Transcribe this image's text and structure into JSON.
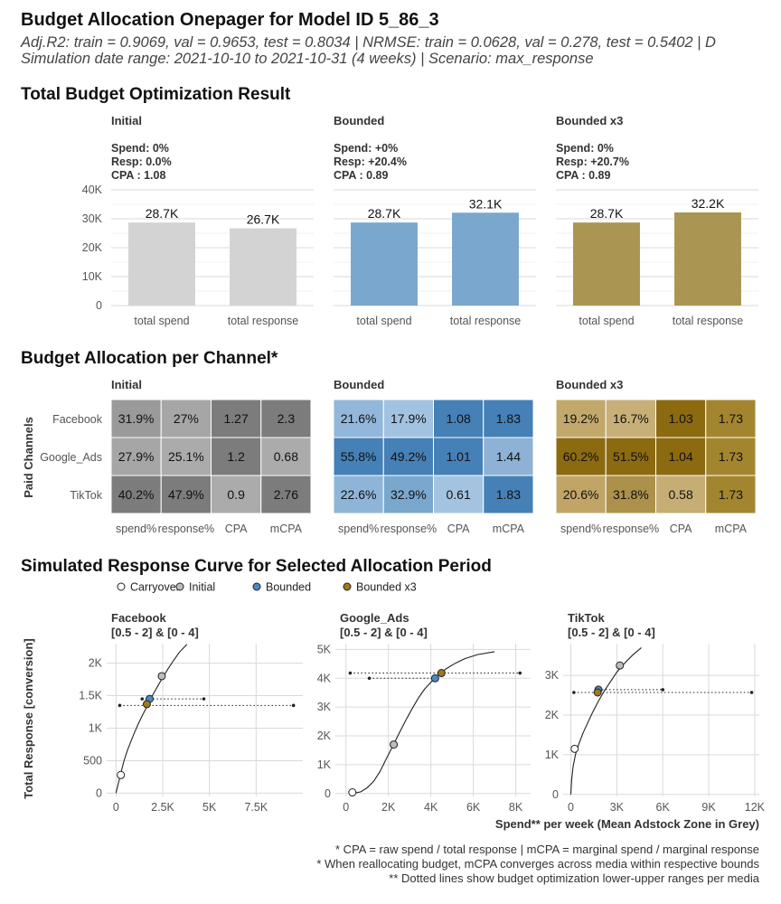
{
  "header": {
    "title": "Budget Allocation Onepager for Model ID 5_86_3",
    "subtitle1": "Adj.R2: train = 0.9069, val = 0.9653, test = 0.8034 | NRMSE: train = 0.0628, val = 0.278, test = 0.5402 | D",
    "subtitle2": "Simulation date range: 2021-10-10 to 2021-10-31 (4 weeks) | Scenario: max_response"
  },
  "sections": {
    "total": "Total Budget Optimization Result",
    "channel": "Budget Allocation per Channel*",
    "curves": "Simulated Response Curve for Selected Allocation Period"
  },
  "colors": {
    "initial": "#d3d3d3",
    "bounded": "#7aa7cd",
    "bounded_x3": "#ab9552",
    "grid": "#d9d9d9"
  },
  "chart_data": [
    {
      "type": "bar",
      "title": "Total Budget Optimization Result",
      "categories": [
        "total spend",
        "total response"
      ],
      "ylim": [
        0,
        40000
      ],
      "yticks": [
        0,
        10000,
        20000,
        30000,
        40000
      ],
      "ytick_labels": [
        "0",
        "10K",
        "20K",
        "30K",
        "40K"
      ],
      "facets": [
        {
          "name": "Initial",
          "stats": [
            "Spend: 0%",
            "Resp: 0.0%",
            "CPA : 1.08"
          ],
          "values": [
            28700,
            26700
          ],
          "labels": [
            "28.7K",
            "26.7K"
          ],
          "color": "#d3d3d3"
        },
        {
          "name": "Bounded",
          "stats": [
            "Spend: +0%",
            "Resp: +20.4%",
            "CPA : 0.89"
          ],
          "values": [
            28700,
            32100
          ],
          "labels": [
            "28.7K",
            "32.1K"
          ],
          "color": "#7aa7cd"
        },
        {
          "name": "Bounded x3",
          "stats": [
            "Spend: 0%",
            "Resp: +20.7%",
            "CPA : 0.89"
          ],
          "values": [
            28700,
            32200
          ],
          "labels": [
            "28.7K",
            "32.2K"
          ],
          "color": "#ab9552"
        }
      ]
    },
    {
      "type": "heatmap",
      "title": "Budget Allocation per Channel*",
      "ylabel": "Paid Channels",
      "rows": [
        "Facebook",
        "Google_Ads",
        "TikTok"
      ],
      "columns": [
        "spend%",
        "response%",
        "CPA",
        "mCPA"
      ],
      "facets": [
        {
          "name": "Initial",
          "cells": [
            [
              "31.9%",
              "27%",
              "1.27",
              "2.3"
            ],
            [
              "27.9%",
              "25.1%",
              "1.2",
              "0.68"
            ],
            [
              "40.2%",
              "47.9%",
              "0.9",
              "2.76"
            ]
          ],
          "colors": [
            [
              "#9a9a9a",
              "#a6a6a6",
              "#7c7c7c",
              "#7c7c7c"
            ],
            [
              "#a6a6a6",
              "#ababab",
              "#7c7c7c",
              "#ababab"
            ],
            [
              "#7c7c7c",
              "#7c7c7c",
              "#ababab",
              "#7c7c7c"
            ]
          ]
        },
        {
          "name": "Bounded",
          "cells": [
            [
              "21.6%",
              "17.9%",
              "1.08",
              "1.83"
            ],
            [
              "55.8%",
              "49.2%",
              "1.01",
              "1.44"
            ],
            [
              "22.6%",
              "32.9%",
              "0.61",
              "1.83"
            ]
          ],
          "colors": [
            [
              "#92b7da",
              "#a2c2e1",
              "#4580b6",
              "#4580b6"
            ],
            [
              "#4580b6",
              "#4580b6",
              "#4580b6",
              "#8db2d6"
            ],
            [
              "#8eb4d8",
              "#7aa7cd",
              "#a4c3e1",
              "#4580b6"
            ]
          ]
        },
        {
          "name": "Bounded x3",
          "cells": [
            [
              "19.2%",
              "16.7%",
              "1.03",
              "1.73"
            ],
            [
              "60.2%",
              "51.5%",
              "1.04",
              "1.73"
            ],
            [
              "20.6%",
              "31.8%",
              "0.58",
              "1.73"
            ]
          ],
          "colors": [
            [
              "#c2a86b",
              "#c7af78",
              "#8c6a10",
              "#a4852f"
            ],
            [
              "#8c6a10",
              "#8c6a10",
              "#8c6a10",
              "#a4852f"
            ],
            [
              "#c0a566",
              "#ab914a",
              "#c5ad74",
              "#a4852f"
            ]
          ]
        }
      ]
    },
    {
      "type": "line",
      "title": "Simulated Response Curve for Selected Allocation Period",
      "ylabel": "Total Response [conversion]",
      "xlabel": "Spend** per week (Mean Adstock Zone in Grey)",
      "legend": {
        "position": "top-left",
        "entries": [
          {
            "name": "Carryover",
            "color": "#ffffff"
          },
          {
            "name": "Initial",
            "color": "#bdbdbd"
          },
          {
            "name": "Bounded",
            "color": "#4b89c3"
          },
          {
            "name": "Bounded x3",
            "color": "#9d7a20"
          }
        ]
      },
      "panels": [
        {
          "name": "Facebook",
          "bounds": "[0.5 - 2] & [0 - 4]",
          "xlim": [
            -500,
            10000
          ],
          "ylim": [
            -50,
            2300
          ],
          "xticks": [
            0,
            2500,
            5000,
            7500
          ],
          "xtick_labels": [
            "0",
            "2.5K",
            "5K",
            "7.5K"
          ],
          "yticks": [
            0,
            500,
            1000,
            1500,
            2000
          ],
          "ytick_labels": [
            "0",
            "500",
            "1K",
            "1.5K",
            "2K"
          ],
          "curve": [
            [
              0,
              0
            ],
            [
              100,
              120
            ],
            [
              200,
              240
            ],
            [
              400,
              470
            ],
            [
              600,
              650
            ],
            [
              800,
              800
            ],
            [
              1000,
              940
            ],
            [
              1200,
              1070
            ],
            [
              1400,
              1190
            ],
            [
              1600,
              1300
            ],
            [
              1800,
              1420
            ],
            [
              2000,
              1530
            ],
            [
              2200,
              1630
            ],
            [
              2500,
              1780
            ],
            [
              2800,
              1920
            ],
            [
              3100,
              2050
            ],
            [
              3400,
              2170
            ],
            [
              3800,
              2290
            ]
          ],
          "range_lines": [
            {
              "y": 1350,
              "x": [
                200,
                9500
              ],
              "ticks": [
                200,
                9500
              ]
            },
            {
              "y": 1450,
              "x": [
                1400,
                4700
              ],
              "ticks": [
                1400,
                4700
              ]
            }
          ],
          "points": [
            {
              "type": "Carryover",
              "x": 260,
              "y": 280
            },
            {
              "type": "Initial",
              "x": 2450,
              "y": 1800
            },
            {
              "type": "Bounded",
              "x": 1800,
              "y": 1450
            },
            {
              "type": "Bounded x3",
              "x": 1650,
              "y": 1370
            }
          ]
        },
        {
          "name": "Google_Ads",
          "bounds": "[0.5 - 2] & [0 - 4]",
          "xlim": [
            -500,
            8700
          ],
          "ylim": [
            -100,
            5200
          ],
          "xticks": [
            0,
            2000,
            4000,
            6000,
            8000
          ],
          "xtick_labels": [
            "0",
            "2K",
            "4K",
            "6K",
            "8K"
          ],
          "yticks": [
            0,
            1000,
            2000,
            3000,
            4000,
            5000
          ],
          "ytick_labels": [
            "0",
            "1K",
            "2K",
            "3K",
            "4K",
            "5K"
          ],
          "curve": [
            [
              300,
              0
            ],
            [
              700,
              60
            ],
            [
              1000,
              200
            ],
            [
              1300,
              420
            ],
            [
              1600,
              760
            ],
            [
              1900,
              1200
            ],
            [
              2200,
              1640
            ],
            [
              2500,
              2080
            ],
            [
              2800,
              2520
            ],
            [
              3100,
              2920
            ],
            [
              3400,
              3300
            ],
            [
              3700,
              3620
            ],
            [
              4000,
              3860
            ],
            [
              4300,
              4080
            ],
            [
              4700,
              4320
            ],
            [
              5100,
              4500
            ],
            [
              5600,
              4680
            ],
            [
              6200,
              4820
            ],
            [
              7000,
              4920
            ]
          ],
          "range_lines": [
            {
              "y": 4180,
              "x": [
                200,
                8200
              ],
              "ticks": [
                200,
                8200
              ]
            },
            {
              "y": 4000,
              "x": [
                1100,
                4300
              ],
              "ticks": [
                1100,
                4300
              ]
            }
          ],
          "points": [
            {
              "type": "Carryover",
              "x": 300,
              "y": 40
            },
            {
              "type": "Initial",
              "x": 2250,
              "y": 1700
            },
            {
              "type": "Bounded",
              "x": 4200,
              "y": 4000
            },
            {
              "type": "Bounded x3",
              "x": 4500,
              "y": 4180
            }
          ]
        },
        {
          "name": "TikTok",
          "bounds": "[0.5 - 2] & [0 - 4]",
          "xlim": [
            -500,
            12300
          ],
          "ylim": [
            -50,
            3800
          ],
          "xticks": [
            0,
            3000,
            6000,
            9000,
            12000
          ],
          "xtick_labels": [
            "0",
            "3K",
            "6K",
            "9K",
            "12K"
          ],
          "yticks": [
            0,
            1000,
            2000,
            3000
          ],
          "ytick_labels": [
            "0",
            "1K",
            "2K",
            "3K"
          ],
          "curve": [
            [
              0,
              0
            ],
            [
              50,
              350
            ],
            [
              150,
              700
            ],
            [
              300,
              1000
            ],
            [
              500,
              1250
            ],
            [
              800,
              1550
            ],
            [
              1100,
              1800
            ],
            [
              1400,
              2050
            ],
            [
              1800,
              2350
            ],
            [
              2200,
              2620
            ],
            [
              2600,
              2850
            ],
            [
              3000,
              3080
            ],
            [
              3500,
              3300
            ],
            [
              4000,
              3500
            ],
            [
              4600,
              3700
            ]
          ],
          "range_lines": [
            {
              "y": 2570,
              "x": [
                200,
                11800
              ],
              "ticks": [
                200,
                11800
              ]
            },
            {
              "y": 2640,
              "x": [
                1800,
                6000
              ],
              "ticks": [
                1800,
                6000
              ]
            }
          ],
          "points": [
            {
              "type": "Carryover",
              "x": 250,
              "y": 1150
            },
            {
              "type": "Initial",
              "x": 3200,
              "y": 3250
            },
            {
              "type": "Bounded",
              "x": 1800,
              "y": 2640
            },
            {
              "type": "Bounded x3",
              "x": 1750,
              "y": 2570
            }
          ]
        }
      ]
    }
  ],
  "footnotes": [
    "* CPA = raw spend / total response | mCPA =  marginal spend / marginal response",
    "* When reallocating budget, mCPA converges across media within respective bounds",
    "** Dotted lines show budget optimization lower-upper ranges per media"
  ]
}
